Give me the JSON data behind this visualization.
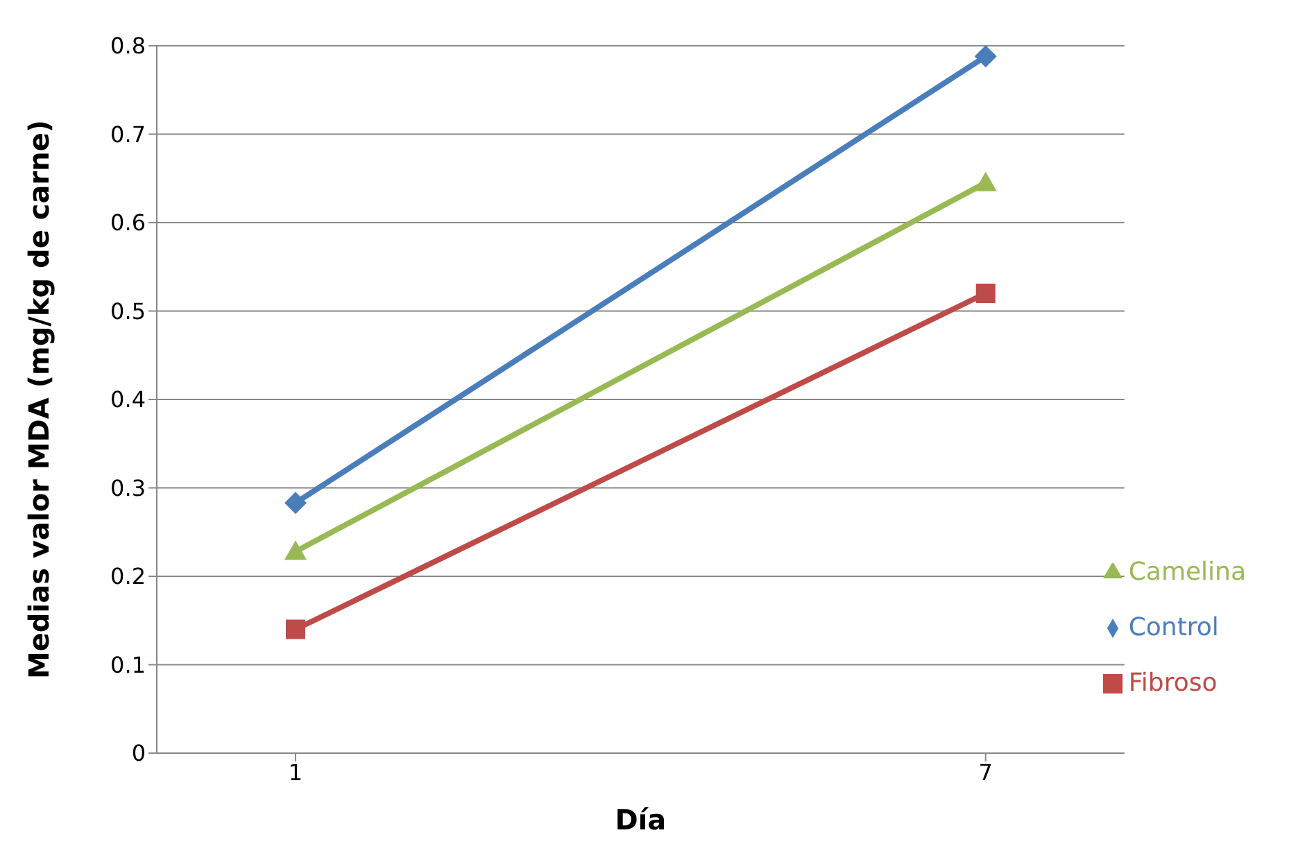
{
  "chart_data": {
    "type": "line",
    "xlabel": "Día",
    "ylabel": "Medias valor MDA (mg/kg de carne)",
    "categories": [
      "1",
      "7"
    ],
    "series": [
      {
        "name": "Control",
        "color": "#4a7ebb",
        "marker": "diamond",
        "values": [
          0.283,
          0.788
        ]
      },
      {
        "name": "Fibroso",
        "color": "#be4b48",
        "marker": "square",
        "values": [
          0.14,
          0.52
        ]
      },
      {
        "name": "Camelina",
        "color": "#98b954",
        "marker": "triangle",
        "values": [
          0.228,
          0.645
        ]
      }
    ],
    "ylim": [
      0,
      0.8
    ],
    "yticks": [
      0,
      0.1,
      0.2,
      0.3,
      0.4,
      0.5,
      0.6,
      0.7,
      0.8
    ],
    "grid": "y",
    "legend": "bottom right"
  }
}
